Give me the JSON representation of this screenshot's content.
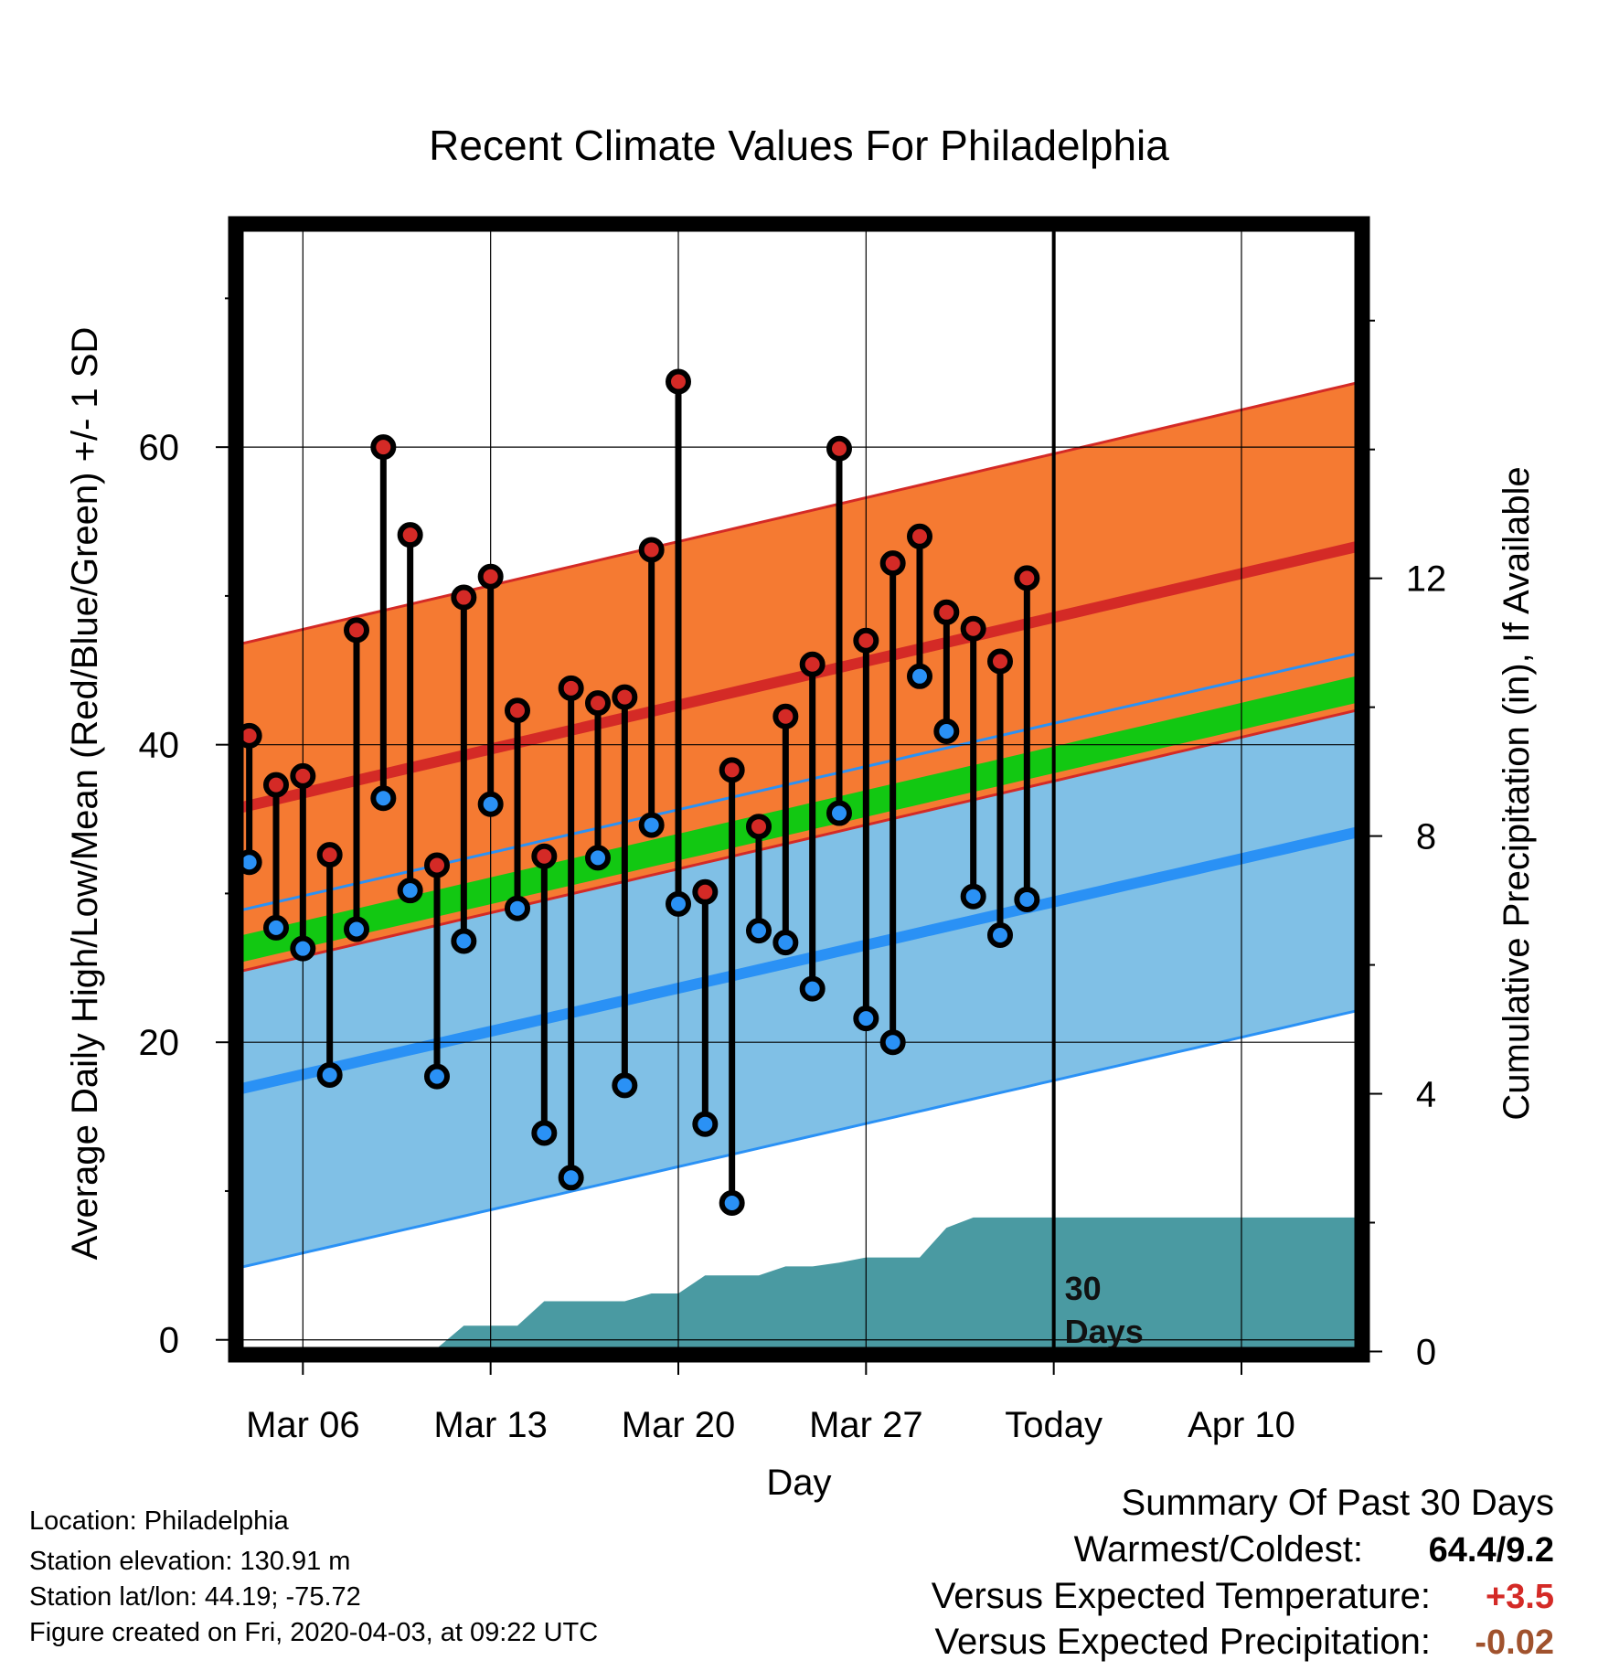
{
  "chart_data": {
    "type": "line",
    "title": "Recent Climate Values For Philadelphia",
    "xlabel": "Day",
    "ylabel": "Average Daily High/Low/Mean (Red/Blue/Green) +/- 1 SD",
    "y2label": "Cumulative Precipitation (in), If Available",
    "ylim": [
      -1,
      75
    ],
    "y2lim": [
      -0.05,
      17.5
    ],
    "xlim": [
      0.5,
      42.5
    ],
    "yticks": [
      0,
      20,
      40,
      60
    ],
    "y2ticks": [
      0,
      4,
      8,
      12
    ],
    "xticks": [
      {
        "day": 3,
        "label": "Mar 06"
      },
      {
        "day": 10,
        "label": "Mar 13"
      },
      {
        "day": 17,
        "label": "Mar 20"
      },
      {
        "day": 24,
        "label": "Mar 27"
      },
      {
        "day": 31,
        "label": "Today"
      },
      {
        "day": 38,
        "label": "Apr 10"
      }
    ],
    "grid": true,
    "today_day": 31,
    "today_label": "30 Days",
    "days": [
      1,
      2,
      3,
      4,
      5,
      6,
      7,
      8,
      9,
      10,
      11,
      12,
      13,
      14,
      15,
      16,
      17,
      18,
      19,
      20,
      21,
      22,
      23,
      24,
      25,
      26,
      27,
      28,
      29,
      30
    ],
    "highs": [
      40.6,
      37.3,
      37.9,
      32.6,
      47.7,
      60.0,
      54.1,
      31.9,
      49.9,
      51.3,
      42.3,
      32.5,
      43.8,
      42.8,
      43.2,
      53.1,
      64.4,
      30.1,
      38.3,
      34.5,
      41.9,
      45.4,
      59.9,
      47.0,
      52.2,
      54.0,
      48.9,
      47.8,
      45.6,
      51.2
    ],
    "lows": [
      32.1,
      27.7,
      26.3,
      17.8,
      27.6,
      36.4,
      30.2,
      17.7,
      26.8,
      36.0,
      29.0,
      13.9,
      10.9,
      32.4,
      17.1,
      34.6,
      29.3,
      14.5,
      9.2,
      27.5,
      26.7,
      23.6,
      35.4,
      21.6,
      20.0,
      44.6,
      40.9,
      29.8,
      27.2,
      29.6
    ],
    "normal_high": {
      "start": 35.7,
      "end": 53.4
    },
    "normal_high_sd": 11.0,
    "normal_low": {
      "start": 16.8,
      "end": 34.2
    },
    "normal_low_sd": 12.0,
    "normal_mean": {
      "start": 26.2,
      "end": 43.8
    },
    "normal_mean_band": 0.9,
    "precip_cumulative": [
      0,
      0,
      0,
      0,
      0,
      0,
      0.05,
      0.05,
      0.4,
      0.4,
      0.4,
      0.78,
      0.78,
      0.78,
      0.78,
      0.9,
      0.9,
      1.18,
      1.18,
      1.18,
      1.32,
      1.32,
      1.38,
      1.46,
      1.46,
      1.46,
      1.92,
      2.08,
      2.08,
      2.08,
      2.08,
      2.08,
      2.08,
      2.08,
      2.08,
      2.08,
      2.08,
      2.08,
      2.08,
      2.08,
      2.08,
      2.08
    ],
    "colors": {
      "high": "#d42a26",
      "high_band": "#f57a32",
      "low": "#2a91f5",
      "low_band": "#80c0e6",
      "mean": "#12c812",
      "overlap": "#9c1c1c",
      "precip": "#4a9aa2"
    }
  },
  "footer": {
    "location": "Location: Philadelphia",
    "elevation": "Station elevation: 130.91 m",
    "latlon": "Station lat/lon: 44.19; -75.72",
    "created": "Figure created on Fri, 2020-04-03, at 09:22 UTC"
  },
  "summary": {
    "title": "Summary Of Past 30 Days",
    "warm_label": "Warmest/Coldest:",
    "warm_value": "64.4/9.2",
    "temp_label": "Versus Expected Temperature:",
    "temp_value": "+3.5",
    "temp_color": "#d42a26",
    "precip_label": "Versus Expected Precipitation:",
    "precip_value": "-0.02",
    "precip_color": "#a0522d"
  }
}
